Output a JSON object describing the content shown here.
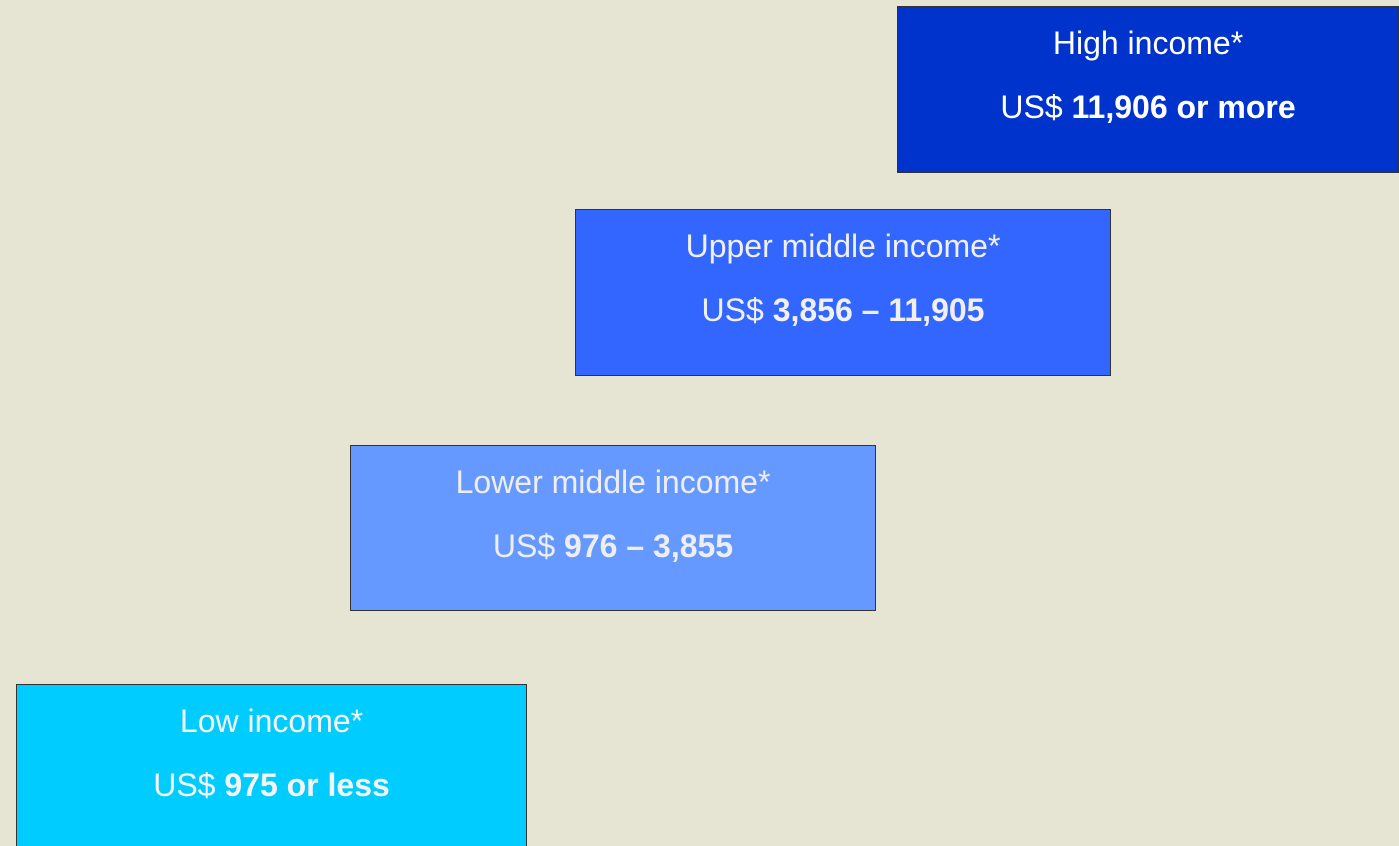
{
  "levels": [
    {
      "label": "High income*",
      "prefix": "US$",
      "range": "11,906 or more"
    },
    {
      "label": "Upper middle income*",
      "prefix": "US$",
      "range": "3,856 – 11,905"
    },
    {
      "label": "Lower middle income*",
      "prefix": "US$",
      "range": "976 – 3,855"
    },
    {
      "label": "Low income*",
      "prefix": "US$",
      "range": "975 or less"
    }
  ]
}
